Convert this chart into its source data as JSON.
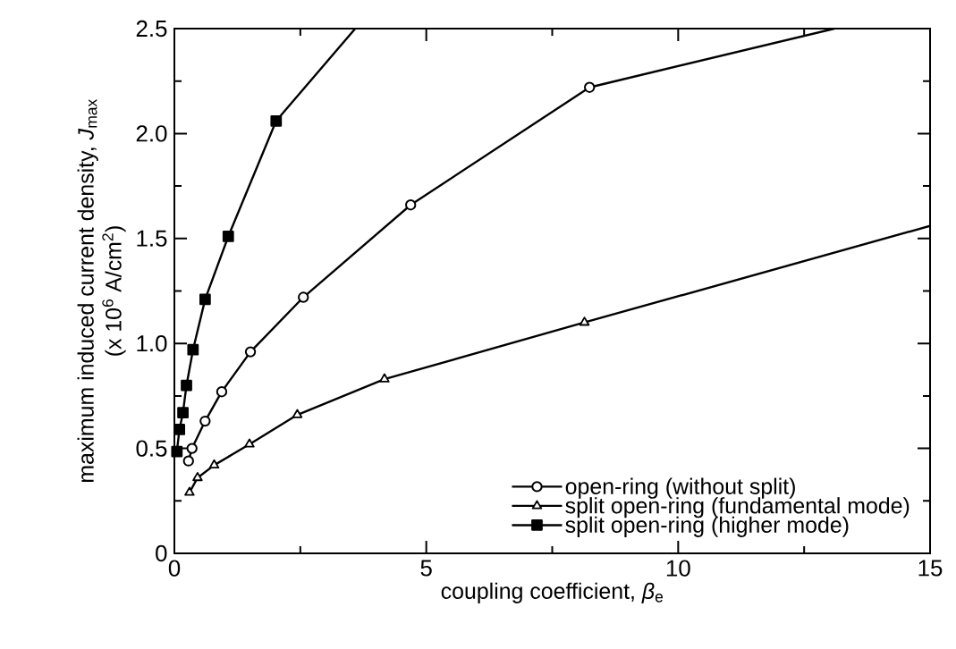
{
  "chart_data": {
    "type": "line",
    "xlabel": "coupling coefficient, *β*$_{e}$",
    "ylabel": [
      "maximum induced current density, *J*$_{max}$",
      "(x 10$^{6}$ A/cm$^{2}$)"
    ],
    "xlim": [
      0,
      15
    ],
    "ylim": [
      0,
      2.5
    ],
    "xticks": [
      0,
      5,
      10,
      15
    ],
    "yticks": [
      0,
      {
        "value": 0.5,
        "label": "0.5"
      },
      {
        "value": 1,
        "label": "1.0"
      },
      1.5,
      {
        "value": 2,
        "label": "2.0"
      },
      2.5
    ],
    "grid": false,
    "legend": "bottom right",
    "line_style": "solid",
    "series": [
      {
        "name": "open-ring (without split)",
        "color": "#000000",
        "marker": "circle",
        "x": [
          0.28,
          0.35,
          0.61,
          0.94,
          1.51,
          2.56,
          4.69,
          8.24,
          13.1
        ],
        "values": [
          0.44,
          0.5,
          0.63,
          0.77,
          0.96,
          1.22,
          1.66,
          2.22,
          2.5
        ]
      },
      {
        "name": "split open-ring (fundamental mode)",
        "color": "#000000",
        "marker": "triangle",
        "x": [
          0.3,
          0.46,
          0.79,
          1.49,
          2.44,
          4.17,
          8.14,
          15
        ],
        "values": [
          0.29,
          0.36,
          0.42,
          0.52,
          0.66,
          0.83,
          1.1,
          1.56
        ]
      },
      {
        "name": "split open-ring (higher mode)",
        "color": "#000000",
        "marker": "square",
        "x": [
          0.05,
          0.1,
          0.17,
          0.24,
          0.37,
          0.61,
          1.07,
          2.02,
          3.59
        ],
        "values": [
          0.485,
          0.59,
          0.67,
          0.8,
          0.97,
          1.21,
          1.51,
          2.06,
          2.5
        ]
      }
    ]
  }
}
